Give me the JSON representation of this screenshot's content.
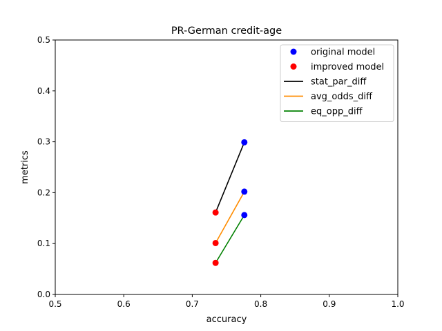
{
  "chart_data": {
    "type": "scatter",
    "title": "PR-German credit-age",
    "xlabel": "accuracy",
    "ylabel": "metrics",
    "xlim": [
      0.5,
      1.0
    ],
    "ylim": [
      0.0,
      0.5
    ],
    "xticks": [
      "0.5",
      "0.6",
      "0.7",
      "0.8",
      "0.9",
      "1.0"
    ],
    "yticks": [
      "0.0",
      "0.1",
      "0.2",
      "0.3",
      "0.4",
      "0.5"
    ],
    "grid": false,
    "legend_position": "top-right",
    "points": [
      {
        "name": "original model",
        "color": "#0000ff",
        "marker": "circle",
        "x": [
          0.776,
          0.776,
          0.776
        ],
        "y": [
          0.299,
          0.202,
          0.156
        ]
      },
      {
        "name": "improved model",
        "color": "#ff0000",
        "marker": "circle",
        "x": [
          0.734,
          0.734,
          0.734
        ],
        "y": [
          0.161,
          0.101,
          0.062
        ]
      }
    ],
    "lines": [
      {
        "name": "stat_par_diff",
        "color": "#000000",
        "x": [
          0.734,
          0.776
        ],
        "y": [
          0.161,
          0.299
        ]
      },
      {
        "name": "avg_odds_diff",
        "color": "#ff8c00",
        "x": [
          0.734,
          0.776
        ],
        "y": [
          0.101,
          0.202
        ]
      },
      {
        "name": "eq_opp_diff",
        "color": "#008000",
        "x": [
          0.734,
          0.776
        ],
        "y": [
          0.062,
          0.156
        ]
      }
    ]
  }
}
